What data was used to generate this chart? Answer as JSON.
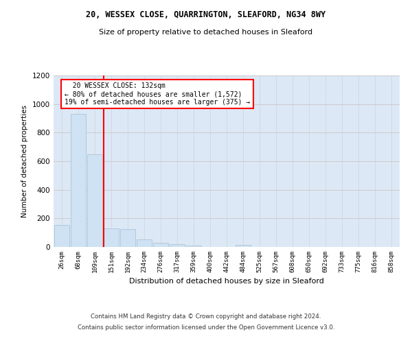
{
  "title1": "20, WESSEX CLOSE, QUARRINGTON, SLEAFORD, NG34 8WY",
  "title2": "Size of property relative to detached houses in Sleaford",
  "xlabel": "Distribution of detached houses by size in Sleaford",
  "ylabel": "Number of detached properties",
  "footer1": "Contains HM Land Registry data © Crown copyright and database right 2024.",
  "footer2": "Contains public sector information licensed under the Open Government Licence v3.0.",
  "bar_labels": [
    "26sqm",
    "68sqm",
    "109sqm",
    "151sqm",
    "192sqm",
    "234sqm",
    "276sqm",
    "317sqm",
    "359sqm",
    "400sqm",
    "442sqm",
    "484sqm",
    "525sqm",
    "567sqm",
    "608sqm",
    "650sqm",
    "692sqm",
    "733sqm",
    "775sqm",
    "816sqm",
    "858sqm"
  ],
  "bar_values": [
    155,
    930,
    650,
    130,
    125,
    55,
    30,
    20,
    10,
    0,
    0,
    15,
    0,
    0,
    0,
    0,
    0,
    0,
    0,
    0,
    0
  ],
  "bar_color": "#cfe2f3",
  "bar_edge_color": "#aac4d8",
  "property_label": "20 WESSEX CLOSE: 132sqm",
  "pct_smaller": "80%",
  "count_smaller": "1,572",
  "pct_larger": "19%",
  "count_larger": "375",
  "vline_x": 2.55,
  "ylim": [
    0,
    1200
  ],
  "yticks": [
    0,
    200,
    400,
    600,
    800,
    1000,
    1200
  ],
  "grid_color": "#cccccc",
  "background_color": "#dce8f5"
}
